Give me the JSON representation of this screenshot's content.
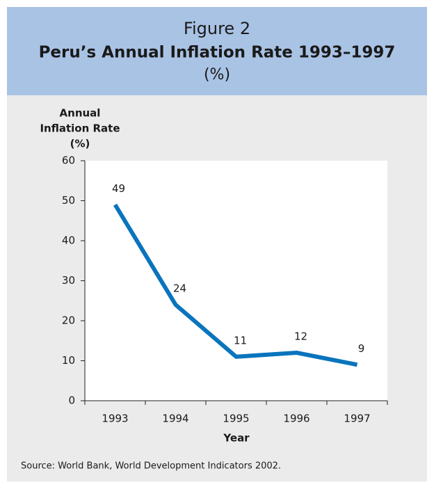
{
  "chart_data": {
    "type": "line",
    "figure_label": "Figure 2",
    "title": "Peru’s Annual Inflation Rate 1993–1997",
    "subtitle": "(%)",
    "ylabel_lines": [
      "Annual",
      "Inflation Rate",
      "(%)"
    ],
    "xlabel": "Year",
    "categories": [
      "1993",
      "1994",
      "1995",
      "1996",
      "1997"
    ],
    "values": [
      49,
      24,
      11,
      12,
      9
    ],
    "color": "#0a74bd",
    "ylim": [
      0,
      60
    ],
    "yticks": [
      0,
      10,
      20,
      30,
      40,
      50,
      60
    ],
    "source": "Source:  World Bank, World Development Indicators 2002."
  }
}
